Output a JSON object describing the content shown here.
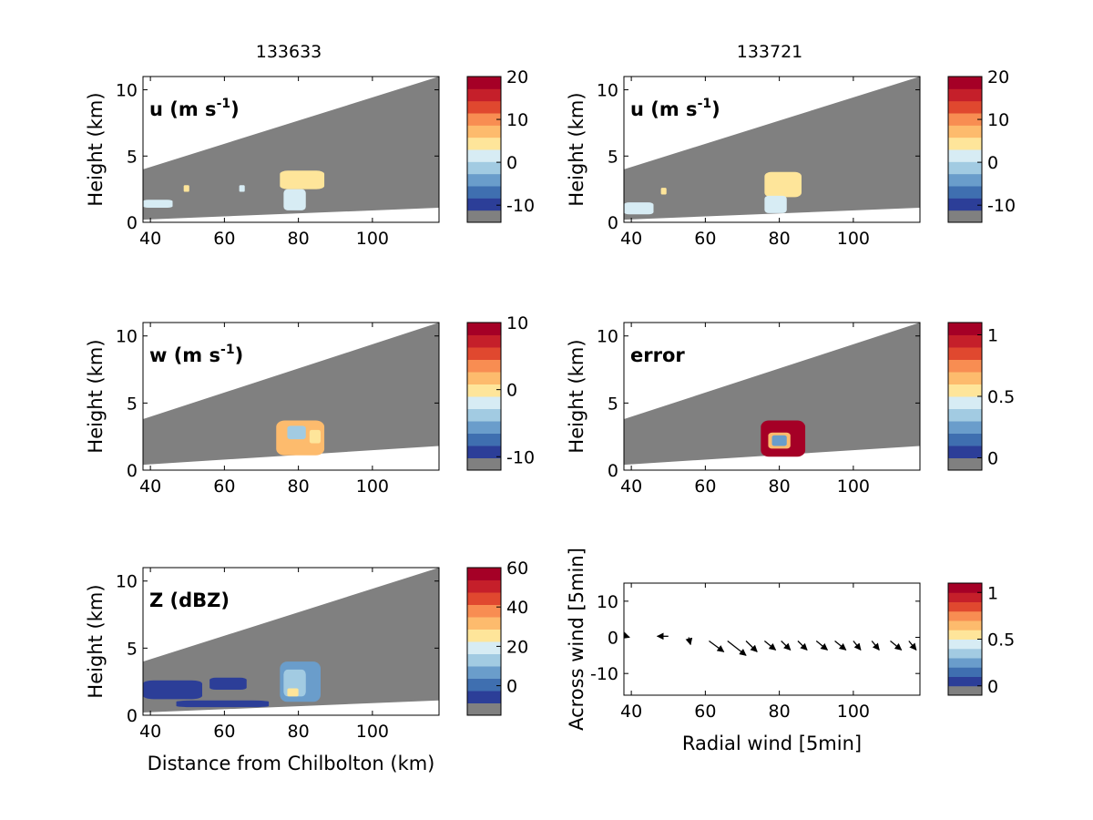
{
  "column_titles": [
    "133633",
    "133721"
  ],
  "colors": {
    "scale": [
      "#808080",
      "#2c3e98",
      "#3f6fb0",
      "#6a9dcb",
      "#a2cbe2",
      "#d7ecf4",
      "#fee59a",
      "#fdbb6d",
      "#f88d52",
      "#e0482f",
      "#c51f2a",
      "#a50026"
    ],
    "plot_background": "#808080",
    "axes": "#000000"
  },
  "chart_data": [
    {
      "type": "heatmap",
      "column": "133633",
      "label": "u (m s",
      "label_sup": "-1",
      "label_tail": ")",
      "ylabel": "Height (km)",
      "xlabel": "",
      "xlim": [
        38,
        118
      ],
      "ylim": [
        0,
        11
      ],
      "xticks": [
        "40",
        "60",
        "80",
        "100"
      ],
      "yticks": [
        "0",
        "5",
        "10"
      ],
      "sector_top": [
        [
          38,
          4.0
        ],
        [
          118,
          11.0
        ]
      ],
      "sector_bottom": [
        [
          38,
          0.2
        ],
        [
          118,
          1.1
        ]
      ],
      "echoes": [
        {
          "x": [
            75,
            87
          ],
          "y": [
            2.5,
            3.9
          ],
          "color": "#fee59a"
        },
        {
          "x": [
            76,
            82
          ],
          "y": [
            0.9,
            2.5
          ],
          "color": "#d7ecf4"
        },
        {
          "x": [
            38,
            46
          ],
          "y": [
            1.1,
            1.7
          ],
          "color": "#d7ecf4"
        },
        {
          "x": [
            49,
            50.5
          ],
          "y": [
            2.3,
            2.8
          ],
          "color": "#fee59a"
        },
        {
          "x": [
            64,
            65.5
          ],
          "y": [
            2.3,
            2.8
          ],
          "color": "#d7ecf4"
        }
      ],
      "colorbar": {
        "ticks": [
          "20",
          "10",
          "0",
          "-10"
        ],
        "tick_values": [
          20,
          10,
          0,
          -10
        ],
        "range": [
          -14,
          20
        ]
      }
    },
    {
      "type": "heatmap",
      "column": "133721",
      "label": "u (m s",
      "label_sup": "-1",
      "label_tail": ")",
      "ylabel": "Height (km)",
      "xlabel": "",
      "xlim": [
        38,
        118
      ],
      "ylim": [
        0,
        11
      ],
      "xticks": [
        "40",
        "60",
        "80",
        "100"
      ],
      "yticks": [
        "0",
        "5",
        "10"
      ],
      "sector_top": [
        [
          38,
          4.0
        ],
        [
          118,
          11.0
        ]
      ],
      "sector_bottom": [
        [
          38,
          0.2
        ],
        [
          118,
          1.1
        ]
      ],
      "echoes": [
        {
          "x": [
            76,
            86
          ],
          "y": [
            1.9,
            3.8
          ],
          "color": "#fee59a"
        },
        {
          "x": [
            76,
            82
          ],
          "y": [
            0.7,
            2.0
          ],
          "color": "#d7ecf4"
        },
        {
          "x": [
            38,
            46
          ],
          "y": [
            0.6,
            1.5
          ],
          "color": "#d7ecf4"
        },
        {
          "x": [
            48,
            49.5
          ],
          "y": [
            2.1,
            2.6
          ],
          "color": "#fee59a"
        }
      ],
      "colorbar": {
        "ticks": [
          "20",
          "10",
          "0",
          "-10"
        ],
        "tick_values": [
          20,
          10,
          0,
          -10
        ],
        "range": [
          -14,
          20
        ]
      }
    },
    {
      "type": "heatmap",
      "column": "133633",
      "label": "w (m s",
      "label_sup": "-1",
      "label_tail": ")",
      "ylabel": "Height (km)",
      "xlabel": "",
      "xlim": [
        38,
        118
      ],
      "ylim": [
        0,
        11
      ],
      "xticks": [
        "40",
        "60",
        "80",
        "100"
      ],
      "yticks": [
        "0",
        "5",
        "10"
      ],
      "sector_top": [
        [
          38,
          3.8
        ],
        [
          118,
          11.0
        ]
      ],
      "sector_bottom": [
        [
          38,
          0.4
        ],
        [
          118,
          1.8
        ]
      ],
      "echoes": [
        {
          "x": [
            74,
            87
          ],
          "y": [
            1.1,
            3.7
          ],
          "color": "#fdbb6d"
        },
        {
          "x": [
            77,
            82
          ],
          "y": [
            2.3,
            3.3
          ],
          "color": "#a2cbe2"
        },
        {
          "x": [
            83,
            86
          ],
          "y": [
            2.0,
            3.0
          ],
          "color": "#fee59a"
        }
      ],
      "colorbar": {
        "ticks": [
          "10",
          "0",
          "-10"
        ],
        "tick_values": [
          10,
          0,
          -10
        ],
        "range": [
          -12,
          10
        ]
      }
    },
    {
      "type": "heatmap",
      "column": "133721",
      "label": "error",
      "label_sup": "",
      "label_tail": "",
      "ylabel": "Height (km)",
      "xlabel": "",
      "xlim": [
        38,
        118
      ],
      "ylim": [
        0,
        11
      ],
      "xticks": [
        "40",
        "60",
        "80",
        "100"
      ],
      "yticks": [
        "0",
        "5",
        "10"
      ],
      "sector_top": [
        [
          38,
          3.8
        ],
        [
          118,
          11.0
        ]
      ],
      "sector_bottom": [
        [
          38,
          0.4
        ],
        [
          118,
          1.8
        ]
      ],
      "echoes": [
        {
          "x": [
            75,
            87
          ],
          "y": [
            1.0,
            3.7
          ],
          "color": "#a50026"
        },
        {
          "x": [
            77,
            83
          ],
          "y": [
            1.6,
            2.8
          ],
          "color": "#fdbb6d"
        },
        {
          "x": [
            78,
            82
          ],
          "y": [
            1.8,
            2.6
          ],
          "color": "#6a9dcb"
        }
      ],
      "colorbar": {
        "ticks": [
          "1",
          "0.5",
          "0"
        ],
        "tick_values": [
          1,
          0.5,
          0
        ],
        "range": [
          -0.1,
          1.1
        ]
      }
    },
    {
      "type": "heatmap",
      "column": "133633",
      "label": "Z (dBZ)",
      "label_sup": "",
      "label_tail": "",
      "ylabel": "Height (km)",
      "xlabel": "Distance from Chilbolton (km)",
      "xlim": [
        38,
        118
      ],
      "ylim": [
        0,
        11
      ],
      "xticks": [
        "40",
        "60",
        "80",
        "100"
      ],
      "yticks": [
        "0",
        "5",
        "10"
      ],
      "sector_top": [
        [
          38,
          4.0
        ],
        [
          118,
          11.0
        ]
      ],
      "sector_bottom": [
        [
          38,
          0.2
        ],
        [
          118,
          1.1
        ]
      ],
      "echoes": [
        {
          "x": [
            75,
            86
          ],
          "y": [
            1.0,
            4.0
          ],
          "color": "#6a9dcb"
        },
        {
          "x": [
            76,
            82
          ],
          "y": [
            1.4,
            3.4
          ],
          "color": "#a2cbe2"
        },
        {
          "x": [
            77,
            80
          ],
          "y": [
            1.4,
            2.0
          ],
          "color": "#fee59a"
        },
        {
          "x": [
            38,
            54
          ],
          "y": [
            1.2,
            2.6
          ],
          "color": "#2c3e98"
        },
        {
          "x": [
            56,
            66
          ],
          "y": [
            1.9,
            2.8
          ],
          "color": "#2c3e98"
        },
        {
          "x": [
            47,
            72
          ],
          "y": [
            0.6,
            1.1
          ],
          "color": "#2c3e98"
        }
      ],
      "colorbar": {
        "ticks": [
          "60",
          "40",
          "20",
          "0"
        ],
        "tick_values": [
          60,
          40,
          20,
          0
        ],
        "range": [
          -15,
          60
        ]
      }
    },
    {
      "type": "scatter",
      "column": "133721",
      "label": "",
      "ylabel": "Across wind [5min]",
      "xlabel": "Radial wind [5min]",
      "xlim": [
        38,
        118
      ],
      "ylim": [
        -16,
        15
      ],
      "xticks": [
        "40",
        "60",
        "80",
        "100"
      ],
      "yticks": [
        "10",
        "0",
        "-10"
      ],
      "ytick_values": [
        10,
        0,
        -10
      ],
      "arrows": [
        {
          "x": 38,
          "y": 0.5,
          "u": 1.5,
          "v": -0.5
        },
        {
          "x": 50,
          "y": 0.3,
          "u": -3,
          "v": 0
        },
        {
          "x": 55.5,
          "y": 0,
          "u": 0.5,
          "v": -2
        },
        {
          "x": 61,
          "y": -1,
          "u": 4,
          "v": -3
        },
        {
          "x": 66,
          "y": -1,
          "u": 5,
          "v": -4
        },
        {
          "x": 71,
          "y": -1,
          "u": 3,
          "v": -3
        },
        {
          "x": 76,
          "y": -1,
          "u": 3,
          "v": -2.5
        },
        {
          "x": 80.5,
          "y": -1,
          "u": 2.5,
          "v": -2.5
        },
        {
          "x": 85,
          "y": -1,
          "u": 2.5,
          "v": -2.5
        },
        {
          "x": 90,
          "y": -1,
          "u": 3,
          "v": -2.5
        },
        {
          "x": 95,
          "y": -1,
          "u": 3,
          "v": -2.5
        },
        {
          "x": 100,
          "y": -1,
          "u": 2,
          "v": -2.5
        },
        {
          "x": 105,
          "y": -1,
          "u": 2,
          "v": -2.5
        },
        {
          "x": 110,
          "y": -1,
          "u": 3,
          "v": -2.5
        },
        {
          "x": 115,
          "y": -1,
          "u": 2,
          "v": -2.5
        }
      ],
      "colorbar": {
        "ticks": [
          "1",
          "0.5",
          "0"
        ],
        "tick_values": [
          1,
          0.5,
          0
        ],
        "range": [
          -0.1,
          1.1
        ]
      }
    }
  ]
}
